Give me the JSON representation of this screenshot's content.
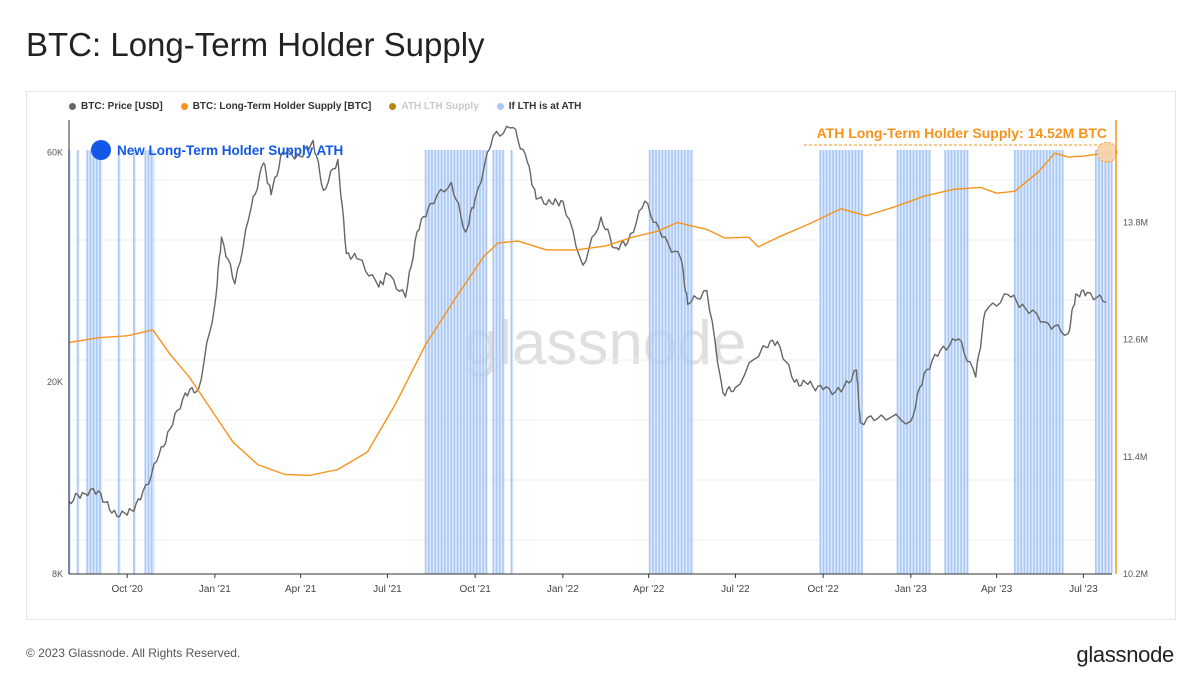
{
  "page": {
    "title": "BTC: Long-Term Holder Supply",
    "copyright": "© 2023 Glassnode. All Rights Reserved.",
    "logo": "glassnode",
    "watermark": "glassnode"
  },
  "legend": [
    {
      "label": "BTC: Price [USD]",
      "color": "#666666"
    },
    {
      "label": "BTC: Long-Term Holder Supply [BTC]",
      "color": "#f7931a"
    },
    {
      "label": "ATH LTH Supply",
      "color": "#b8860b",
      "muted": true
    },
    {
      "label": "If LTH is at ATH",
      "color": "#a9c8f5"
    }
  ],
  "annotations": {
    "new_ath_label": "New Long-Term Holder Supply ATH",
    "new_ath_color": "#1158e8",
    "ath_value_label": "ATH Long-Term Holder Supply: 14.52M BTC",
    "ath_color": "#f7931a"
  },
  "chart_data": {
    "type": "line",
    "x_range": [
      "2020-08-01",
      "2023-07-31"
    ],
    "x_ticks": [
      {
        "date": "2020-10-01",
        "label": "Oct '20"
      },
      {
        "date": "2021-01-01",
        "label": "Jan '21"
      },
      {
        "date": "2021-04-01",
        "label": "Apr '21"
      },
      {
        "date": "2021-07-01",
        "label": "Jul '21"
      },
      {
        "date": "2021-10-01",
        "label": "Oct '21"
      },
      {
        "date": "2022-01-01",
        "label": "Jan '22"
      },
      {
        "date": "2022-04-01",
        "label": "Apr '22"
      },
      {
        "date": "2022-07-01",
        "label": "Jul '22"
      },
      {
        "date": "2022-10-01",
        "label": "Oct '22"
      },
      {
        "date": "2023-01-01",
        "label": "Jan '23"
      },
      {
        "date": "2023-04-01",
        "label": "Apr '23"
      },
      {
        "date": "2023-07-01",
        "label": "Jul '23"
      }
    ],
    "y_left": {
      "scale": "log",
      "range": [
        8000,
        70000
      ],
      "ticks": [
        {
          "value": 8000,
          "label": "8K"
        },
        {
          "value": 20000,
          "label": "20K"
        },
        {
          "value": 60000,
          "label": "60K"
        }
      ]
    },
    "y_right": {
      "scale": "linear",
      "range": [
        10200000,
        14850000
      ],
      "ticks": [
        {
          "value": 10200000,
          "label": "10.2M"
        },
        {
          "value": 11400000,
          "label": "11.4M"
        },
        {
          "value": 12600000,
          "label": "12.6M"
        },
        {
          "value": 13800000,
          "label": "13.8M"
        }
      ]
    },
    "series": [
      {
        "name": "BTC: Price [USD]",
        "axis": "left",
        "color": "#666666",
        "points": [
          [
            "2020-08-01",
            11300
          ],
          [
            "2020-08-15",
            11800
          ],
          [
            "2020-09-01",
            11900
          ],
          [
            "2020-09-15",
            10700
          ],
          [
            "2020-10-01",
            10600
          ],
          [
            "2020-10-15",
            11400
          ],
          [
            "2020-11-01",
            13700
          ],
          [
            "2020-11-15",
            16000
          ],
          [
            "2020-12-01",
            19000
          ],
          [
            "2020-12-15",
            19400
          ],
          [
            "2021-01-01",
            29000
          ],
          [
            "2021-01-08",
            40000
          ],
          [
            "2021-01-22",
            32000
          ],
          [
            "2021-02-08",
            46000
          ],
          [
            "2021-02-21",
            57000
          ],
          [
            "2021-03-01",
            49000
          ],
          [
            "2021-03-13",
            60000
          ],
          [
            "2021-04-01",
            58800
          ],
          [
            "2021-04-14",
            63500
          ],
          [
            "2021-04-25",
            50000
          ],
          [
            "2021-05-10",
            58000
          ],
          [
            "2021-05-19",
            37000
          ],
          [
            "2021-06-01",
            36000
          ],
          [
            "2021-06-22",
            31500
          ],
          [
            "2021-07-01",
            33500
          ],
          [
            "2021-07-20",
            30000
          ],
          [
            "2021-08-01",
            41000
          ],
          [
            "2021-08-15",
            47000
          ],
          [
            "2021-09-06",
            52000
          ],
          [
            "2021-09-21",
            41000
          ],
          [
            "2021-10-01",
            48000
          ],
          [
            "2021-10-20",
            65000
          ],
          [
            "2021-11-10",
            67500
          ],
          [
            "2021-11-25",
            57000
          ],
          [
            "2021-12-04",
            48000
          ],
          [
            "2021-12-20",
            47000
          ],
          [
            "2022-01-01",
            47500
          ],
          [
            "2022-01-22",
            35000
          ],
          [
            "2022-02-10",
            44000
          ],
          [
            "2022-02-24",
            38000
          ],
          [
            "2022-03-10",
            39000
          ],
          [
            "2022-03-28",
            47500
          ],
          [
            "2022-04-15",
            40000
          ],
          [
            "2022-05-05",
            36000
          ],
          [
            "2022-05-12",
            29000
          ],
          [
            "2022-06-01",
            31000
          ],
          [
            "2022-06-18",
            19000
          ],
          [
            "2022-07-01",
            19500
          ],
          [
            "2022-07-30",
            23800
          ],
          [
            "2022-08-14",
            24300
          ],
          [
            "2022-09-01",
            20000
          ],
          [
            "2022-09-15",
            19800
          ],
          [
            "2022-10-01",
            19300
          ],
          [
            "2022-10-20",
            19100
          ],
          [
            "2022-11-05",
            21200
          ],
          [
            "2022-11-09",
            16500
          ],
          [
            "2022-12-01",
            17100
          ],
          [
            "2023-01-01",
            16600
          ],
          [
            "2023-01-15",
            20900
          ],
          [
            "2023-02-01",
            23300
          ],
          [
            "2023-02-20",
            24600
          ],
          [
            "2023-03-10",
            20500
          ],
          [
            "2023-03-20",
            28000
          ],
          [
            "2023-04-13",
            30400
          ],
          [
            "2023-05-01",
            28500
          ],
          [
            "2023-05-25",
            26500
          ],
          [
            "2023-06-15",
            25200
          ],
          [
            "2023-06-23",
            30500
          ],
          [
            "2023-07-05",
            30700
          ],
          [
            "2023-07-25",
            29300
          ]
        ]
      },
      {
        "name": "BTC: Long-Term Holder Supply [BTC]",
        "axis": "right",
        "color": "#f7931a",
        "points": [
          [
            "2020-08-01",
            12570000
          ],
          [
            "2020-09-01",
            12620000
          ],
          [
            "2020-10-01",
            12640000
          ],
          [
            "2020-10-28",
            12700000
          ],
          [
            "2020-11-15",
            12450000
          ],
          [
            "2020-12-05",
            12220000
          ],
          [
            "2020-12-25",
            11930000
          ],
          [
            "2021-01-20",
            11550000
          ],
          [
            "2021-02-15",
            11320000
          ],
          [
            "2021-03-15",
            11220000
          ],
          [
            "2021-04-10",
            11210000
          ],
          [
            "2021-05-10",
            11270000
          ],
          [
            "2021-06-10",
            11450000
          ],
          [
            "2021-07-10",
            11950000
          ],
          [
            "2021-08-10",
            12550000
          ],
          [
            "2021-09-10",
            13020000
          ],
          [
            "2021-10-10",
            13450000
          ],
          [
            "2021-10-25",
            13590000
          ],
          [
            "2021-11-15",
            13610000
          ],
          [
            "2021-12-15",
            13520000
          ],
          [
            "2022-01-15",
            13520000
          ],
          [
            "2022-02-15",
            13560000
          ],
          [
            "2022-03-15",
            13650000
          ],
          [
            "2022-04-10",
            13710000
          ],
          [
            "2022-05-01",
            13800000
          ],
          [
            "2022-06-01",
            13730000
          ],
          [
            "2022-06-20",
            13640000
          ],
          [
            "2022-07-15",
            13650000
          ],
          [
            "2022-07-25",
            13550000
          ],
          [
            "2022-08-15",
            13650000
          ],
          [
            "2022-09-15",
            13780000
          ],
          [
            "2022-10-20",
            13940000
          ],
          [
            "2022-11-15",
            13870000
          ],
          [
            "2022-12-15",
            13960000
          ],
          [
            "2023-01-15",
            14070000
          ],
          [
            "2023-02-15",
            14140000
          ],
          [
            "2023-03-15",
            14160000
          ],
          [
            "2023-04-01",
            14100000
          ],
          [
            "2023-04-20",
            14120000
          ],
          [
            "2023-05-15",
            14320000
          ],
          [
            "2023-06-01",
            14510000
          ],
          [
            "2023-06-15",
            14470000
          ],
          [
            "2023-07-01",
            14480000
          ],
          [
            "2023-07-31",
            14520000
          ]
        ]
      }
    ],
    "ath_periods": [
      [
        "2020-08-01",
        "2020-08-03"
      ],
      [
        "2020-08-10",
        "2020-08-12"
      ],
      [
        "2020-08-20",
        "2020-09-05"
      ],
      [
        "2020-09-22",
        "2020-09-24"
      ],
      [
        "2020-10-08",
        "2020-10-10"
      ],
      [
        "2020-10-20",
        "2020-10-30"
      ],
      [
        "2021-08-10",
        "2021-10-14"
      ],
      [
        "2021-10-20",
        "2021-11-01"
      ],
      [
        "2021-11-08",
        "2021-11-10"
      ],
      [
        "2022-04-02",
        "2022-05-18"
      ],
      [
        "2022-09-28",
        "2022-11-12"
      ],
      [
        "2022-12-18",
        "2023-01-22"
      ],
      [
        "2023-02-06",
        "2023-03-02"
      ],
      [
        "2023-04-20",
        "2023-06-10"
      ],
      [
        "2023-07-14",
        "2023-07-31"
      ]
    ],
    "ath_value": 14520000
  }
}
